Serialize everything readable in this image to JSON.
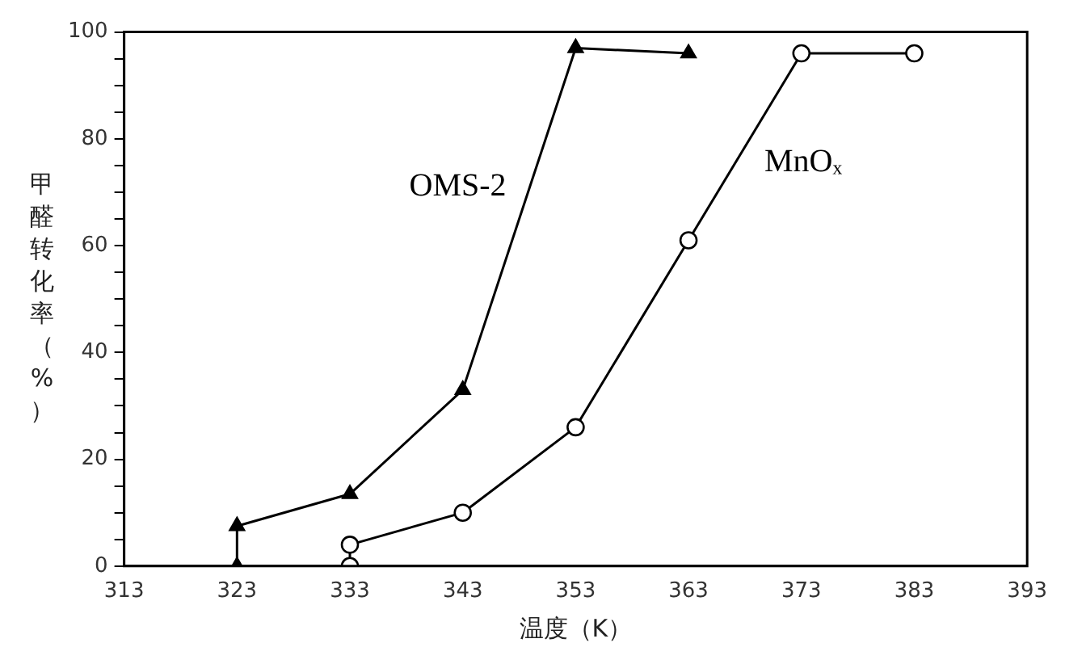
{
  "chart_data": {
    "type": "line",
    "xlabel": "温度（K）",
    "ylabel": "甲醛转化率（%）",
    "xlim": [
      313,
      393
    ],
    "xticks": [
      313,
      323,
      333,
      343,
      353,
      363,
      373,
      383,
      393
    ],
    "ylim": [
      0,
      100
    ],
    "yticks": [
      0,
      {
        "value": 5,
        "label": null
      },
      {
        "value": 10,
        "label": null
      },
      {
        "value": 15,
        "label": null
      },
      20,
      {
        "value": 25,
        "label": null
      },
      {
        "value": 30,
        "label": null
      },
      {
        "value": 35,
        "label": null
      },
      40,
      {
        "value": 45,
        "label": null
      },
      {
        "value": 50,
        "label": null
      },
      {
        "value": 55,
        "label": null
      },
      60,
      {
        "value": 65,
        "label": null
      },
      {
        "value": 70,
        "label": null
      },
      {
        "value": 75,
        "label": null
      },
      80,
      {
        "value": 85,
        "label": null
      },
      {
        "value": 90,
        "label": null
      },
      {
        "value": 95,
        "label": null
      },
      100
    ],
    "grid": false,
    "legend": false,
    "line_style": "solid",
    "series": [
      {
        "name": "OMS-2",
        "color": "#000000",
        "marker": "triangle",
        "x": [
          323,
          323,
          333,
          343,
          353,
          363
        ],
        "values": [
          0,
          7.5,
          13.5,
          33,
          97,
          96
        ]
      },
      {
        "name": "MnOₓ",
        "color": "#000000",
        "marker": "circle",
        "x": [
          333,
          333,
          343,
          353,
          363,
          373,
          383
        ],
        "values": [
          0,
          4,
          10,
          26,
          61,
          96,
          96
        ]
      }
    ]
  }
}
